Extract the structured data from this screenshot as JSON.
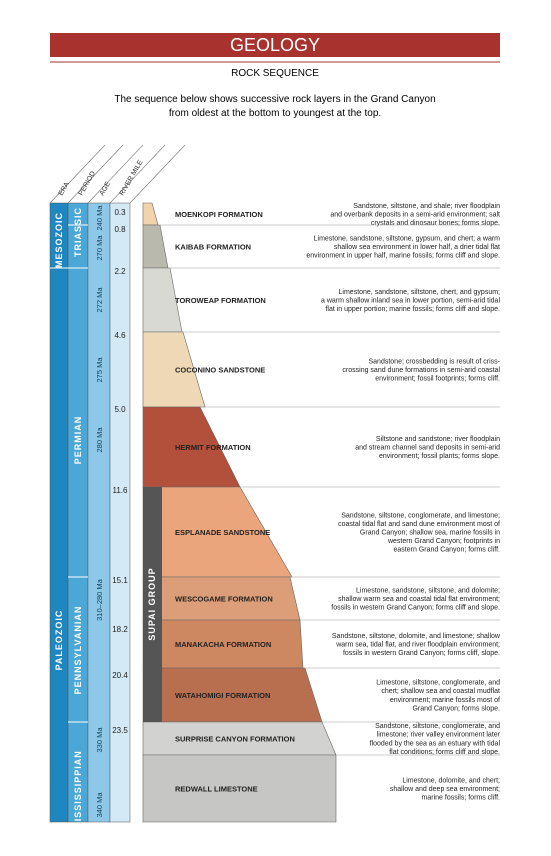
{
  "header": {
    "title": "GEOLOGY",
    "subtitle": "ROCK SEQUENCE",
    "intro": [
      "The sequence below shows successive rock layers in the Grand Canyon",
      "from oldest at the bottom to youngest at the top."
    ]
  },
  "columns": [
    "ERA",
    "PERIOD",
    "AGE",
    "RIVER MILE"
  ],
  "eras": [
    "MESOZOIC",
    "PALEOZOIC"
  ],
  "periods": [
    "TRIASSIC",
    "PERMIAN",
    "PENNSYLVANIAN",
    "MISSISSIPPIAN"
  ],
  "ages": [
    "240 Ma",
    "270 Ma",
    "272 Ma",
    "275 Ma",
    "280 Ma",
    "310–280 Ma",
    "330 Ma",
    "340 Ma"
  ],
  "river_miles": [
    "0.3",
    "0.8",
    "2.2",
    "4.6",
    "5.0",
    "11.6",
    "15.1",
    "18.2",
    "20.4",
    "23.5"
  ],
  "group": "SUPAI GROUP",
  "formations": [
    {
      "name": "MOENKOPI FORMATION",
      "description": [
        "Sandstone, siltstone, and shale; river floodplain",
        "and overbank deposits in a semi-arid environment; salt",
        "crystals and dinosaur bones; forms slope."
      ]
    },
    {
      "name": "KAIBAB FORMATION",
      "description": [
        "Limestone, sandstone, siltstone, gypsum, and chert; a warm",
        "shallow sea environment in lower half, a drier tidal flat",
        "environment in upper half, marine fossils; forms cliff and slope."
      ]
    },
    {
      "name": "TOROWEAP FORMATION",
      "description": [
        "Limestone, sandstone, siltstone, chert, and gypsum;",
        "a warm shallow inland sea in lower portion, semi-arid tidal",
        "flat in upper portion; marine fossils; forms cliff and slope."
      ]
    },
    {
      "name": "COCONINO SANDSTONE",
      "description": [
        "Sandstone; crossbedding is result of criss-",
        "crossing sand dune formations in semi-arid coastal",
        "environment; fossil footprints; forms cliff."
      ]
    },
    {
      "name": "HERMIT FORMATION",
      "description": [
        "Siltstone and sandstone; river floodplain",
        "and stream channel sand deposits in semi-arid",
        "environment; fossil plants; forms slope."
      ]
    },
    {
      "name": "ESPLANADE SANDSTONE",
      "description": [
        "Sandstone, siltstone, conglomerate, and limestone;",
        "coastal tidal flat and sand dune environment most of",
        "Grand Canyon; shallow sea, marine fossils in",
        "western Grand Canyon; footprints in",
        "eastern Grand Canyon; forms cliff."
      ]
    },
    {
      "name": "WESCOGAME FORMATION",
      "description": [
        "Limestone, sandstone, siltstone, and dolomite;",
        "shallow warm sea and coastal tidal flat environment;",
        "fossils in western Grand Canyon; forms cliff and slope."
      ]
    },
    {
      "name": "MANAKACHA FORMATION",
      "description": [
        "Sandstone, siltstone, dolomite, and limestone; shallow",
        "warm sea, tidal flat, and river floodplain environment;",
        "fossils in western Grand Canyon; forms cliff, slope."
      ]
    },
    {
      "name": "WATAHOMIGI FORMATION",
      "description": [
        "Limestone, siltstone, conglomerate, and",
        "chert; shallow sea and coastal mudflat",
        "environment; marine fossils most of",
        "Grand Canyon; forms slope."
      ]
    },
    {
      "name": "SURPRISE CANYON FORMATION",
      "description": [
        "Sandstone, siltstone, conglomerate, and",
        "limestone; river valley environment later",
        "flooded by the sea as an estuary with tidal",
        "flat conditions; forms cliff and slope."
      ]
    },
    {
      "name": "REDWALL LIMESTONE",
      "description": [
        "Limestone, dolomite, and chert;",
        "shallow and deep sea environment;",
        "marine fossils; forms cliff."
      ]
    }
  ]
}
